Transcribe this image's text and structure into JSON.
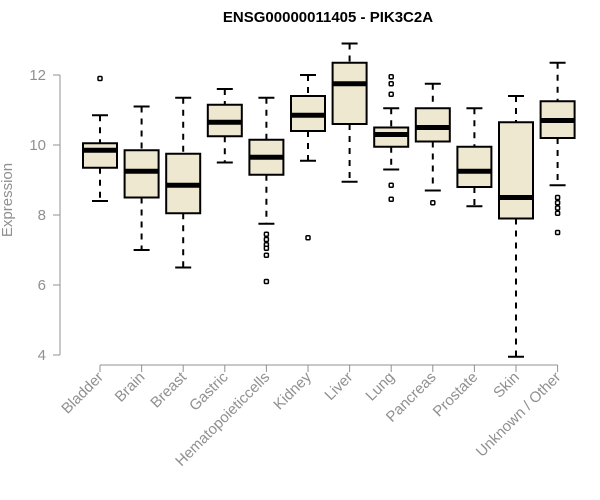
{
  "chart_data": {
    "type": "boxplot",
    "title": "ENSG00000011405 - PIK3C2A",
    "xlabel": "",
    "ylabel": "Expression",
    "ylim": [
      4,
      13
    ],
    "yticks": [
      4,
      6,
      8,
      10,
      12
    ],
    "grid": false,
    "box_color": "#efe8d0",
    "categories": [
      "Bladder",
      "Brain",
      "Breast",
      "Gastric",
      "Hematopoietic cells",
      "Kidney",
      "Liver",
      "Lung",
      "Pancreas",
      "Prostate",
      "Skin",
      "Unknown / Other"
    ],
    "display_labels": [
      "Bladder",
      "Brain",
      "Breast",
      "Gastric",
      "Hematopoieticcells",
      "Kidney",
      "Liver",
      "Lung",
      "Pancreas",
      "Prostate",
      "Skin",
      "Unknown / Other"
    ],
    "boxes": [
      {
        "category": "Bladder",
        "whisker_low": 8.4,
        "q1": 9.35,
        "median": 9.85,
        "q3": 10.05,
        "whisker_high": 10.85,
        "outliers": [
          11.9
        ]
      },
      {
        "category": "Brain",
        "whisker_low": 7.0,
        "q1": 8.5,
        "median": 9.25,
        "q3": 9.85,
        "whisker_high": 11.1,
        "outliers": []
      },
      {
        "category": "Breast",
        "whisker_low": 6.5,
        "q1": 8.05,
        "median": 8.85,
        "q3": 9.75,
        "whisker_high": 11.35,
        "outliers": []
      },
      {
        "category": "Gastric",
        "whisker_low": 9.5,
        "q1": 10.25,
        "median": 10.65,
        "q3": 11.15,
        "whisker_high": 11.6,
        "outliers": []
      },
      {
        "category": "Hematopoietic cells",
        "whisker_low": 7.75,
        "q1": 9.15,
        "median": 9.65,
        "q3": 10.15,
        "whisker_high": 11.35,
        "outliers": [
          7.45,
          7.3,
          7.15,
          7.05,
          6.85,
          6.1
        ]
      },
      {
        "category": "Kidney",
        "whisker_low": 9.55,
        "q1": 10.4,
        "median": 10.85,
        "q3": 11.4,
        "whisker_high": 12.0,
        "outliers": [
          7.35
        ]
      },
      {
        "category": "Liver",
        "whisker_low": 8.95,
        "q1": 10.6,
        "median": 11.75,
        "q3": 12.35,
        "whisker_high": 12.9,
        "outliers": []
      },
      {
        "category": "Lung",
        "whisker_low": 9.3,
        "q1": 9.95,
        "median": 10.3,
        "q3": 10.5,
        "whisker_high": 11.05,
        "outliers": [
          11.95,
          11.75,
          11.45,
          8.85,
          8.45
        ]
      },
      {
        "category": "Pancreas",
        "whisker_low": 8.7,
        "q1": 10.1,
        "median": 10.5,
        "q3": 11.05,
        "whisker_high": 11.75,
        "outliers": [
          8.35
        ]
      },
      {
        "category": "Prostate",
        "whisker_low": 8.25,
        "q1": 8.8,
        "median": 9.25,
        "q3": 9.95,
        "whisker_high": 11.05,
        "outliers": []
      },
      {
        "category": "Skin",
        "whisker_low": 3.95,
        "q1": 7.9,
        "median": 8.5,
        "q3": 10.65,
        "whisker_high": 11.4,
        "outliers": []
      },
      {
        "category": "Unknown / Other",
        "whisker_low": 8.85,
        "q1": 10.2,
        "median": 10.7,
        "q3": 11.25,
        "whisker_high": 12.35,
        "outliers": [
          8.5,
          8.35,
          8.2,
          8.05,
          7.5
        ]
      }
    ]
  }
}
